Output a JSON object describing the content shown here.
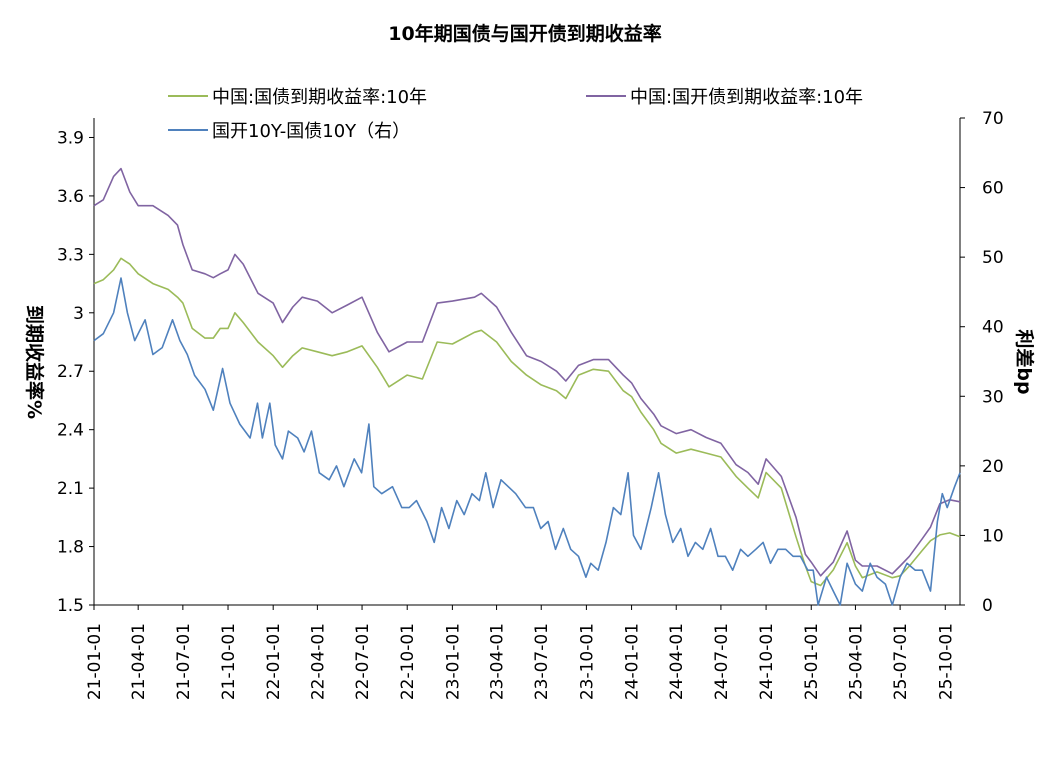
{
  "chart_data": {
    "type": "line",
    "title": "10年期国债与国开债到期收益率",
    "ylabel_left": "到期收益率%",
    "ylabel_right": "利差bp",
    "y_left": {
      "min": 1.5,
      "max": 4.0,
      "ticks": [
        "1.5",
        "1.8",
        "2.1",
        "2.4",
        "2.7",
        "3",
        "3.3",
        "3.6",
        "3.9"
      ]
    },
    "y_right": {
      "min": 0,
      "max": 70,
      "ticks": [
        "0",
        "10",
        "20",
        "30",
        "40",
        "50",
        "60",
        "70"
      ]
    },
    "x_range": [
      "2021-01-01",
      "2025-10-31"
    ],
    "x_ticks": [
      "21-01-01",
      "21-04-01",
      "21-07-01",
      "21-10-01",
      "22-01-01",
      "22-04-01",
      "22-07-01",
      "22-10-01",
      "23-01-01",
      "23-04-01",
      "23-07-01",
      "23-10-01",
      "24-01-01",
      "24-04-01",
      "24-07-01",
      "24-10-01",
      "25-01-01",
      "25-04-01",
      "25-07-01",
      "25-10-01"
    ],
    "legend_position": "top",
    "grid": false,
    "series": [
      {
        "name": "中国:国债到期收益率:10年",
        "axis": "left",
        "color": "#9bbb59",
        "points": [
          [
            "2021-01-01",
            3.15
          ],
          [
            "2021-01-20",
            3.17
          ],
          [
            "2021-02-10",
            3.22
          ],
          [
            "2021-02-25",
            3.28
          ],
          [
            "2021-03-15",
            3.25
          ],
          [
            "2021-04-01",
            3.2
          ],
          [
            "2021-05-01",
            3.15
          ],
          [
            "2021-06-01",
            3.12
          ],
          [
            "2021-06-20",
            3.08
          ],
          [
            "2021-07-01",
            3.05
          ],
          [
            "2021-07-20",
            2.92
          ],
          [
            "2021-08-15",
            2.87
          ],
          [
            "2021-09-01",
            2.87
          ],
          [
            "2021-09-15",
            2.92
          ],
          [
            "2021-10-01",
            2.92
          ],
          [
            "2021-10-15",
            3.0
          ],
          [
            "2021-11-01",
            2.95
          ],
          [
            "2021-12-01",
            2.85
          ],
          [
            "2022-01-01",
            2.78
          ],
          [
            "2022-01-20",
            2.72
          ],
          [
            "2022-02-10",
            2.78
          ],
          [
            "2022-03-01",
            2.82
          ],
          [
            "2022-04-01",
            2.8
          ],
          [
            "2022-05-01",
            2.78
          ],
          [
            "2022-06-01",
            2.8
          ],
          [
            "2022-07-01",
            2.83
          ],
          [
            "2022-08-01",
            2.72
          ],
          [
            "2022-08-25",
            2.62
          ],
          [
            "2022-10-01",
            2.68
          ],
          [
            "2022-11-01",
            2.66
          ],
          [
            "2022-12-01",
            2.85
          ],
          [
            "2023-01-01",
            2.84
          ],
          [
            "2023-02-15",
            2.9
          ],
          [
            "2023-03-01",
            2.91
          ],
          [
            "2023-04-01",
            2.85
          ],
          [
            "2023-05-01",
            2.75
          ],
          [
            "2023-06-01",
            2.68
          ],
          [
            "2023-07-01",
            2.63
          ],
          [
            "2023-08-01",
            2.6
          ],
          [
            "2023-08-20",
            2.56
          ],
          [
            "2023-09-15",
            2.68
          ],
          [
            "2023-10-15",
            2.71
          ],
          [
            "2023-11-15",
            2.7
          ],
          [
            "2023-12-15",
            2.6
          ],
          [
            "2024-01-01",
            2.57
          ],
          [
            "2024-01-20",
            2.49
          ],
          [
            "2024-02-15",
            2.4
          ],
          [
            "2024-03-01",
            2.33
          ],
          [
            "2024-04-01",
            2.28
          ],
          [
            "2024-05-01",
            2.3
          ],
          [
            "2024-06-01",
            2.28
          ],
          [
            "2024-07-01",
            2.26
          ],
          [
            "2024-08-01",
            2.16
          ],
          [
            "2024-08-25",
            2.1
          ],
          [
            "2024-09-15",
            2.05
          ],
          [
            "2024-10-01",
            2.18
          ],
          [
            "2024-11-01",
            2.1
          ],
          [
            "2024-12-01",
            1.85
          ],
          [
            "2024-12-20",
            1.7
          ],
          [
            "2025-01-01",
            1.62
          ],
          [
            "2025-01-20",
            1.6
          ],
          [
            "2025-02-15",
            1.68
          ],
          [
            "2025-03-15",
            1.82
          ],
          [
            "2025-04-01",
            1.7
          ],
          [
            "2025-04-15",
            1.64
          ],
          [
            "2025-05-15",
            1.67
          ],
          [
            "2025-06-15",
            1.64
          ],
          [
            "2025-07-01",
            1.65
          ],
          [
            "2025-07-20",
            1.7
          ],
          [
            "2025-08-15",
            1.78
          ],
          [
            "2025-09-01",
            1.83
          ],
          [
            "2025-09-20",
            1.86
          ],
          [
            "2025-10-10",
            1.87
          ],
          [
            "2025-10-31",
            1.85
          ]
        ]
      },
      {
        "name": "中国:国开债到期收益率:10年",
        "axis": "left",
        "color": "#8064a2",
        "points": [
          [
            "2021-01-01",
            3.55
          ],
          [
            "2021-01-20",
            3.58
          ],
          [
            "2021-02-10",
            3.7
          ],
          [
            "2021-02-25",
            3.74
          ],
          [
            "2021-03-15",
            3.62
          ],
          [
            "2021-04-01",
            3.55
          ],
          [
            "2021-05-01",
            3.55
          ],
          [
            "2021-06-01",
            3.5
          ],
          [
            "2021-06-20",
            3.45
          ],
          [
            "2021-07-01",
            3.35
          ],
          [
            "2021-07-20",
            3.22
          ],
          [
            "2021-08-15",
            3.2
          ],
          [
            "2021-09-01",
            3.18
          ],
          [
            "2021-09-15",
            3.2
          ],
          [
            "2021-10-01",
            3.22
          ],
          [
            "2021-10-15",
            3.3
          ],
          [
            "2021-11-01",
            3.25
          ],
          [
            "2021-12-01",
            3.1
          ],
          [
            "2022-01-01",
            3.05
          ],
          [
            "2022-01-20",
            2.95
          ],
          [
            "2022-02-10",
            3.03
          ],
          [
            "2022-03-01",
            3.08
          ],
          [
            "2022-04-01",
            3.06
          ],
          [
            "2022-05-01",
            3.0
          ],
          [
            "2022-06-01",
            3.04
          ],
          [
            "2022-07-01",
            3.08
          ],
          [
            "2022-08-01",
            2.9
          ],
          [
            "2022-08-25",
            2.8
          ],
          [
            "2022-10-01",
            2.85
          ],
          [
            "2022-11-01",
            2.85
          ],
          [
            "2022-12-01",
            3.05
          ],
          [
            "2023-01-01",
            3.06
          ],
          [
            "2023-02-15",
            3.08
          ],
          [
            "2023-03-01",
            3.1
          ],
          [
            "2023-04-01",
            3.03
          ],
          [
            "2023-05-01",
            2.9
          ],
          [
            "2023-06-01",
            2.78
          ],
          [
            "2023-07-01",
            2.75
          ],
          [
            "2023-08-01",
            2.7
          ],
          [
            "2023-08-20",
            2.65
          ],
          [
            "2023-09-15",
            2.73
          ],
          [
            "2023-10-15",
            2.76
          ],
          [
            "2023-11-15",
            2.76
          ],
          [
            "2023-12-15",
            2.68
          ],
          [
            "2024-01-01",
            2.64
          ],
          [
            "2024-01-20",
            2.56
          ],
          [
            "2024-02-15",
            2.48
          ],
          [
            "2024-03-01",
            2.42
          ],
          [
            "2024-04-01",
            2.38
          ],
          [
            "2024-05-01",
            2.4
          ],
          [
            "2024-06-01",
            2.36
          ],
          [
            "2024-07-01",
            2.33
          ],
          [
            "2024-08-01",
            2.22
          ],
          [
            "2024-08-25",
            2.18
          ],
          [
            "2024-09-15",
            2.12
          ],
          [
            "2024-10-01",
            2.25
          ],
          [
            "2024-11-01",
            2.16
          ],
          [
            "2024-12-01",
            1.95
          ],
          [
            "2024-12-20",
            1.76
          ],
          [
            "2025-01-01",
            1.72
          ],
          [
            "2025-01-20",
            1.65
          ],
          [
            "2025-02-15",
            1.72
          ],
          [
            "2025-03-15",
            1.88
          ],
          [
            "2025-04-01",
            1.73
          ],
          [
            "2025-04-15",
            1.7
          ],
          [
            "2025-05-15",
            1.7
          ],
          [
            "2025-06-15",
            1.66
          ],
          [
            "2025-07-01",
            1.7
          ],
          [
            "2025-07-20",
            1.75
          ],
          [
            "2025-08-15",
            1.84
          ],
          [
            "2025-09-01",
            1.9
          ],
          [
            "2025-09-20",
            2.02
          ],
          [
            "2025-10-10",
            2.04
          ],
          [
            "2025-10-31",
            2.03
          ]
        ]
      },
      {
        "name": "国开10Y-国债10Y（右）",
        "axis": "right",
        "color": "#4f81bd",
        "points": [
          [
            "2021-01-01",
            38
          ],
          [
            "2021-01-20",
            39
          ],
          [
            "2021-02-10",
            42
          ],
          [
            "2021-02-25",
            47
          ],
          [
            "2021-03-10",
            42
          ],
          [
            "2021-03-25",
            38
          ],
          [
            "2021-04-15",
            41
          ],
          [
            "2021-05-01",
            36
          ],
          [
            "2021-05-20",
            37
          ],
          [
            "2021-06-10",
            41
          ],
          [
            "2021-06-25",
            38
          ],
          [
            "2021-07-10",
            36
          ],
          [
            "2021-07-25",
            33
          ],
          [
            "2021-08-15",
            31
          ],
          [
            "2021-09-01",
            28
          ],
          [
            "2021-09-20",
            34
          ],
          [
            "2021-10-05",
            29
          ],
          [
            "2021-10-25",
            26
          ],
          [
            "2021-11-15",
            24
          ],
          [
            "2021-11-30",
            29
          ],
          [
            "2021-12-10",
            24
          ],
          [
            "2021-12-25",
            29
          ],
          [
            "2022-01-05",
            23
          ],
          [
            "2022-01-20",
            21
          ],
          [
            "2022-02-01",
            25
          ],
          [
            "2022-02-20",
            24
          ],
          [
            "2022-03-05",
            22
          ],
          [
            "2022-03-20",
            25
          ],
          [
            "2022-04-05",
            19
          ],
          [
            "2022-04-25",
            18
          ],
          [
            "2022-05-10",
            20
          ],
          [
            "2022-05-25",
            17
          ],
          [
            "2022-06-15",
            21
          ],
          [
            "2022-06-30",
            19
          ],
          [
            "2022-07-15",
            26
          ],
          [
            "2022-07-25",
            17
          ],
          [
            "2022-08-10",
            16
          ],
          [
            "2022-09-01",
            17
          ],
          [
            "2022-09-20",
            14
          ],
          [
            "2022-10-05",
            14
          ],
          [
            "2022-10-20",
            15
          ],
          [
            "2022-11-10",
            12
          ],
          [
            "2022-11-25",
            9
          ],
          [
            "2022-12-10",
            14
          ],
          [
            "2022-12-25",
            11
          ],
          [
            "2023-01-10",
            15
          ],
          [
            "2023-01-25",
            13
          ],
          [
            "2023-02-10",
            16
          ],
          [
            "2023-02-25",
            15
          ],
          [
            "2023-03-10",
            19
          ],
          [
            "2023-03-25",
            14
          ],
          [
            "2023-04-10",
            18
          ],
          [
            "2023-04-25",
            17
          ],
          [
            "2023-05-10",
            16
          ],
          [
            "2023-05-30",
            14
          ],
          [
            "2023-06-15",
            14
          ],
          [
            "2023-06-30",
            11
          ],
          [
            "2023-07-15",
            12
          ],
          [
            "2023-07-30",
            8
          ],
          [
            "2023-08-15",
            11
          ],
          [
            "2023-08-30",
            8
          ],
          [
            "2023-09-15",
            7
          ],
          [
            "2023-09-30",
            4
          ],
          [
            "2023-10-10",
            6
          ],
          [
            "2023-10-25",
            5
          ],
          [
            "2023-11-10",
            9
          ],
          [
            "2023-11-25",
            14
          ],
          [
            "2023-12-10",
            13
          ],
          [
            "2023-12-25",
            19
          ],
          [
            "2024-01-05",
            10
          ],
          [
            "2024-01-20",
            8
          ],
          [
            "2024-02-10",
            14
          ],
          [
            "2024-02-25",
            19
          ],
          [
            "2024-03-10",
            13
          ],
          [
            "2024-03-25",
            9
          ],
          [
            "2024-04-10",
            11
          ],
          [
            "2024-04-25",
            7
          ],
          [
            "2024-05-10",
            9
          ],
          [
            "2024-05-25",
            8
          ],
          [
            "2024-06-10",
            11
          ],
          [
            "2024-06-25",
            7
          ],
          [
            "2024-07-10",
            7
          ],
          [
            "2024-07-25",
            5
          ],
          [
            "2024-08-10",
            8
          ],
          [
            "2024-08-25",
            7
          ],
          [
            "2024-09-10",
            8
          ],
          [
            "2024-09-25",
            9
          ],
          [
            "2024-10-10",
            6
          ],
          [
            "2024-10-25",
            8
          ],
          [
            "2024-11-10",
            8
          ],
          [
            "2024-11-25",
            7
          ],
          [
            "2024-12-10",
            7
          ],
          [
            "2024-12-25",
            5
          ],
          [
            "2025-01-05",
            5
          ],
          [
            "2025-01-15",
            0
          ],
          [
            "2025-02-01",
            4
          ],
          [
            "2025-02-15",
            2
          ],
          [
            "2025-03-01",
            0
          ],
          [
            "2025-03-15",
            6
          ],
          [
            "2025-04-01",
            3
          ],
          [
            "2025-04-15",
            2
          ],
          [
            "2025-05-01",
            6
          ],
          [
            "2025-05-15",
            4
          ],
          [
            "2025-06-01",
            3
          ],
          [
            "2025-06-15",
            0
          ],
          [
            "2025-07-01",
            4
          ],
          [
            "2025-07-15",
            6
          ],
          [
            "2025-08-01",
            5
          ],
          [
            "2025-08-15",
            5
          ],
          [
            "2025-09-01",
            2
          ],
          [
            "2025-09-15",
            12
          ],
          [
            "2025-09-25",
            16
          ],
          [
            "2025-10-05",
            14
          ],
          [
            "2025-10-20",
            17
          ],
          [
            "2025-10-31",
            19
          ]
        ]
      }
    ]
  }
}
